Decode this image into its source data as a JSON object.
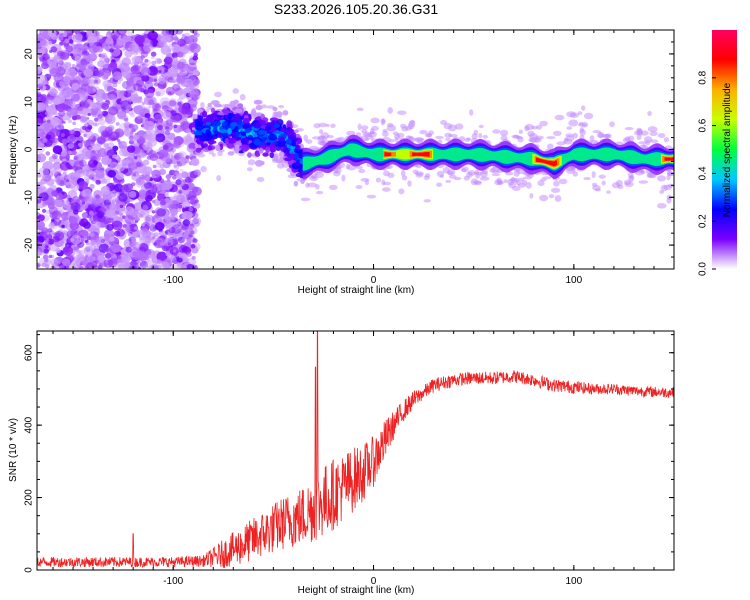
{
  "page": {
    "title": "S233.2026.105.20.36.G31"
  },
  "chart_data": [
    {
      "type": "heatmap",
      "title": "S233.2026.105.20.36.G31",
      "xlabel": "Height of straight line (km)",
      "ylabel": "Frequency (Hz)",
      "xlim": [
        -168,
        150
      ],
      "ylim": [
        -25,
        25
      ],
      "xticks": [
        -100,
        0,
        100
      ],
      "yticks": [
        -20,
        -10,
        0,
        10,
        20
      ],
      "xtick_labels": [
        "-100",
        "0",
        "100"
      ],
      "ytick_labels": [
        "-20",
        "-10",
        "0",
        "10",
        "20"
      ],
      "colorbar": {
        "label": "Normalized spectral amplitude",
        "range": [
          0.0,
          1.0
        ],
        "ticks": [
          0.0,
          0.2,
          0.4,
          0.6,
          0.8
        ],
        "tick_labels": [
          "0.0",
          "0.2",
          "0.4",
          "0.6",
          "0.8"
        ],
        "colormap": "rainbow",
        "colors": [
          "#ffffff",
          "#7a00ff",
          "#0000ff",
          "#00c8ff",
          "#00ff40",
          "#c8ff00",
          "#ffb000",
          "#ff0000",
          "#ff0060"
        ]
      },
      "regions": [
        {
          "name": "noise",
          "x_from": -168,
          "x_to": -88,
          "freq_center": 0,
          "freq_spread": 25,
          "amplitude": 0.1
        },
        {
          "name": "weak-band",
          "x_from": -88,
          "x_to": -35,
          "freq_center": 4,
          "freq_spread": 4,
          "amplitude": 0.3
        },
        {
          "name": "strong-carrier",
          "x_from": -35,
          "x_to": 150,
          "freq_center": -1,
          "freq_spread": 1.5,
          "amplitude": 0.85
        }
      ],
      "ridge_points": [
        {
          "x": -85,
          "freq": 4
        },
        {
          "x": -72,
          "freq": 5
        },
        {
          "x": -60,
          "freq": 3
        },
        {
          "x": -45,
          "freq": 3
        },
        {
          "x": -35,
          "freq": -3
        },
        {
          "x": -25,
          "freq": -2
        },
        {
          "x": -12,
          "freq": 0
        },
        {
          "x": 0,
          "freq": -1
        },
        {
          "x": 20,
          "freq": -1
        },
        {
          "x": 50,
          "freq": -1
        },
        {
          "x": 80,
          "freq": -2
        },
        {
          "x": 90,
          "freq": -3
        },
        {
          "x": 100,
          "freq": -1
        },
        {
          "x": 120,
          "freq": -1
        },
        {
          "x": 135,
          "freq": -2
        },
        {
          "x": 150,
          "freq": -2
        }
      ]
    },
    {
      "type": "line",
      "xlabel": "Height of straight line (km)",
      "ylabel": "SNR (10 * v/v)",
      "xlim": [
        -168,
        150
      ],
      "ylim": [
        0,
        660
      ],
      "xticks": [
        -100,
        0,
        100
      ],
      "yticks": [
        0,
        200,
        400,
        600
      ],
      "xtick_labels": [
        "-100",
        "0",
        "100"
      ],
      "ytick_labels": [
        "0",
        "200",
        "400",
        "600"
      ],
      "series": [
        {
          "name": "SNR",
          "color": "#ee2222",
          "envelope_x": [
            -168,
            -120,
            -100,
            -85,
            -75,
            -65,
            -55,
            -45,
            -35,
            -30,
            -25,
            -20,
            -15,
            -10,
            -5,
            0,
            5,
            10,
            15,
            20,
            25,
            30,
            40,
            50,
            60,
            70,
            80,
            90,
            100,
            110,
            120,
            130,
            140,
            150
          ],
          "envelope_y": [
            22,
            22,
            22,
            25,
            45,
            70,
            100,
            130,
            150,
            170,
            190,
            210,
            230,
            250,
            270,
            300,
            350,
            400,
            440,
            470,
            490,
            510,
            525,
            530,
            530,
            535,
            525,
            510,
            505,
            500,
            500,
            495,
            492,
            490
          ],
          "noise_y": [
            14,
            14,
            14,
            16,
            40,
            55,
            65,
            75,
            85,
            95,
            100,
            100,
            95,
            90,
            80,
            70,
            60,
            40,
            30,
            25,
            20,
            20,
            18,
            18,
            18,
            18,
            18,
            18,
            18,
            15,
            15,
            15,
            15,
            15
          ],
          "spikes": [
            {
              "x": -120,
              "y": 100
            },
            {
              "x": -28,
              "y": 660
            },
            {
              "x": -29,
              "y": 560
            }
          ]
        }
      ]
    }
  ]
}
